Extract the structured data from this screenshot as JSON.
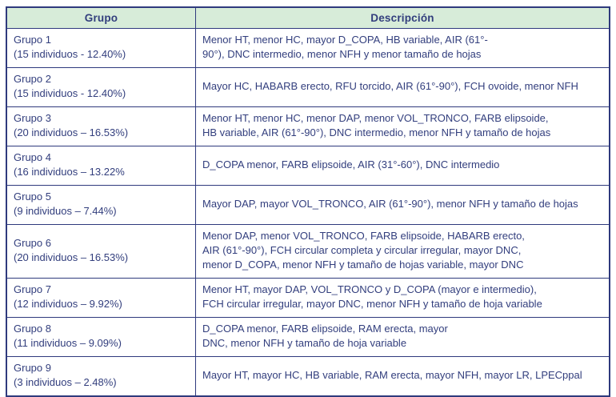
{
  "colors": {
    "text": "#323e7d",
    "border": "#2f3a7d",
    "header_bg": "#d7ecd9"
  },
  "table": {
    "headers": [
      "Grupo",
      "Descripción"
    ],
    "rows": [
      {
        "group": "Grupo 1",
        "count": "(15 individuos - 12.40%)",
        "description_lines": [
          "Menor HT, menor HC, mayor D_COPA, HB variable, AIR (61°-",
          "90°), DNC intermedio, menor NFH y menor tamaño de hojas"
        ]
      },
      {
        "group": "Grupo 2",
        "count": "(15 individuos - 12.40%)",
        "description_lines": [
          "Mayor HC, HABARB erecto, RFU torcido, AIR (61°-90°), FCH ovoide, menor NFH"
        ]
      },
      {
        "group": "Grupo 3",
        "count": "(20 individuos – 16.53%)",
        "description_lines": [
          "Menor HT, menor HC, menor DAP, menor VOL_TRONCO, FARB elipsoide,",
          "HB variable, AIR (61°-90°), DNC intermedio, menor NFH y tamaño de hojas"
        ]
      },
      {
        "group": "Grupo 4",
        "count": "(16 individuos – 13.22%",
        "description_lines": [
          "D_COPA menor, FARB elipsoide, AIR (31°-60°), DNC intermedio"
        ]
      },
      {
        "group": "Grupo 5",
        "count": "(9 individuos – 7.44%)",
        "description_lines": [
          "Mayor DAP, mayor VOL_TRONCO, AIR (61°-90°), menor NFH y tamaño de hojas"
        ]
      },
      {
        "group": "Grupo 6",
        "count": "(20 individuos – 16.53%)",
        "description_lines": [
          "Menor DAP, menor VOL_TRONCO, FARB elipsoide, HABARB erecto,",
          "AIR (61°-90°), FCH circular completa y circular irregular, mayor DNC,",
          "menor D_COPA, menor NFH y tamaño de hojas variable, mayor DNC"
        ]
      },
      {
        "group": "Grupo 7",
        "count": "(12 individuos – 9.92%)",
        "description_lines": [
          "Menor HT, mayor DAP, VOL_TRONCO y D_COPA (mayor e intermedio),",
          "FCH circular irregular, mayor DNC, menor NFH y tamaño de hoja variable"
        ]
      },
      {
        "group": "Grupo 8",
        "count": "(11 individuos – 9.09%)",
        "description_lines": [
          "D_COPA menor, FARB elipsoide, RAM erecta, mayor",
          "DNC, menor NFH y tamaño de hoja variable"
        ]
      },
      {
        "group": "Grupo 9",
        "count": "(3 individuos – 2.48%)",
        "description_lines": [
          "Mayor HT, mayor HC, HB variable, RAM erecta, mayor NFH, mayor LR, LPECppal"
        ]
      }
    ]
  }
}
